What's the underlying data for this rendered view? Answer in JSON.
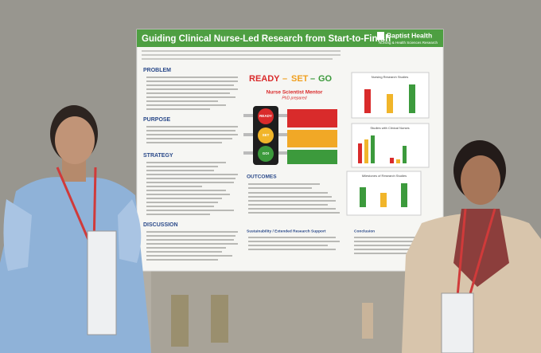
{
  "poster": {
    "title": "Guiding Clinical Nurse-Led Research from Start-to-Finish",
    "brand": "Baptist Health",
    "brand_subtitle": "Nursing & Health Sciences Research",
    "sections": [
      "PROBLEM",
      "PURPOSE",
      "STRATEGY",
      "DISCUSSION"
    ],
    "center": {
      "ready": "READY",
      "set": "SET",
      "go": "GO",
      "mentor": "Nurse Scientist Mentor",
      "mentor_note": "PhD prepared"
    },
    "light": [
      "READY",
      "SET",
      "GO!"
    ],
    "outcomes": "OUTCOMES",
    "sustainability": "Sustainability / Extended Research Support",
    "conclusion": "Conclusion",
    "charts": [
      "Nursing Research Studies",
      "Studies with Clinical Nurses",
      "Milestones of Research Studies"
    ]
  }
}
